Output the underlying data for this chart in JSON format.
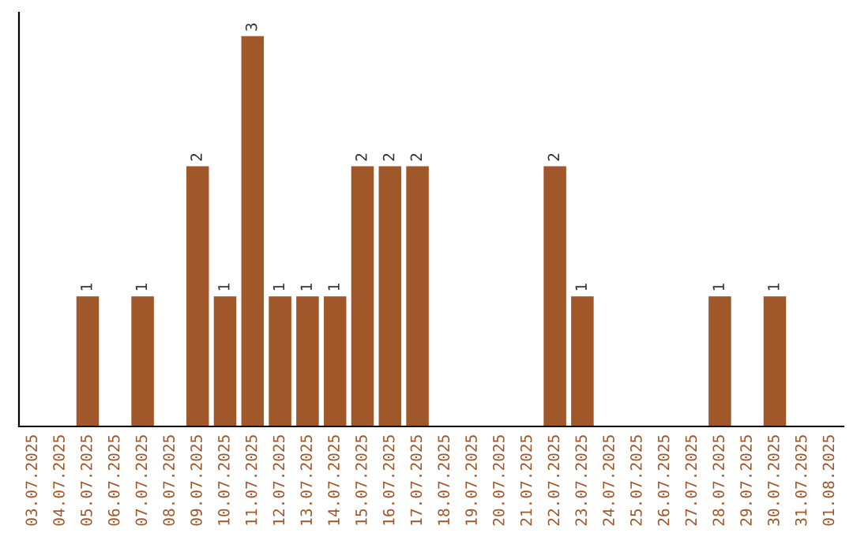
{
  "chart_data": {
    "type": "bar",
    "categories": [
      "03.07.2025",
      "04.07.2025",
      "05.07.2025",
      "06.07.2025",
      "07.07.2025",
      "08.07.2025",
      "09.07.2025",
      "10.07.2025",
      "11.07.2025",
      "12.07.2025",
      "13.07.2025",
      "14.07.2025",
      "15.07.2025",
      "16.07.2025",
      "17.07.2025",
      "18.07.2025",
      "19.07.2025",
      "20.07.2025",
      "21.07.2025",
      "22.07.2025",
      "23.07.2025",
      "24.07.2025",
      "25.07.2025",
      "26.07.2025",
      "27.07.2025",
      "28.07.2025",
      "29.07.2025",
      "30.07.2025",
      "31.07.2025",
      "01.08.2025"
    ],
    "values": [
      0,
      0,
      1,
      0,
      1,
      0,
      2,
      1,
      3,
      1,
      1,
      1,
      2,
      2,
      2,
      0,
      0,
      0,
      0,
      2,
      1,
      0,
      0,
      0,
      0,
      1,
      0,
      1,
      0,
      0
    ],
    "value_labels": [
      null,
      null,
      "1",
      null,
      "1",
      null,
      "2",
      "1",
      "3",
      "1",
      "1",
      "1",
      "2",
      "2",
      "2",
      null,
      null,
      null,
      null,
      "2",
      "1",
      null,
      null,
      null,
      null,
      "1",
      null,
      "1",
      null,
      null
    ],
    "color": "#a0572a",
    "grid": false,
    "legend": false,
    "tick_labels": "x"
  }
}
